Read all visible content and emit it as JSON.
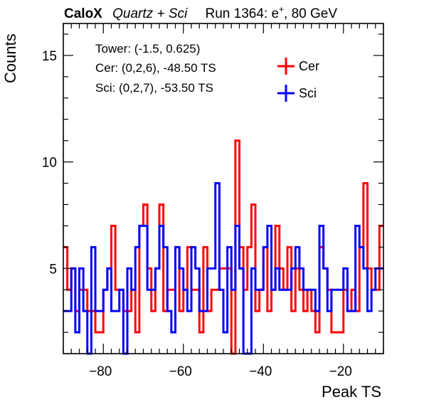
{
  "header": {
    "brand": "CaloX",
    "subtitle": "Quartz + Sci",
    "run_prefix": "Run 1364: e",
    "run_sup": "+",
    "run_suffix": ", 80 GeV"
  },
  "annotations": [
    "Tower: (-1.5, 0.625)",
    "Cer: (0,2,6), -48.50 TS",
    "Sci: (0,2,7), -53.50 TS"
  ],
  "chart_data": {
    "type": "histogram",
    "xlabel": "Peak TS",
    "ylabel": "Counts",
    "xlim": [
      -90,
      -10
    ],
    "ylim": [
      1,
      16.5
    ],
    "x_ticks": [
      -80,
      -60,
      -40,
      -20
    ],
    "y_ticks": [
      5,
      10,
      15
    ],
    "bin_edges_start": -90,
    "bin_width": 1,
    "legend_position": "top-right",
    "series": [
      {
        "name": "Cer",
        "color": "#ff0000",
        "values": [
          6,
          4,
          5,
          3,
          4,
          4,
          3,
          3,
          2,
          2,
          4,
          5,
          7,
          4,
          4,
          3,
          3,
          4,
          2,
          7,
          8,
          5,
          3,
          5,
          8,
          3,
          4,
          4,
          6,
          3,
          4,
          6,
          4,
          4,
          2,
          6,
          3,
          4,
          4,
          5,
          5,
          5,
          1,
          11,
          6,
          4,
          6,
          8,
          3,
          4,
          6,
          3,
          4,
          7,
          5,
          4,
          6,
          3,
          5,
          4,
          3,
          4,
          3,
          2,
          6,
          5,
          4,
          2,
          2,
          2,
          4,
          3,
          4,
          3,
          6,
          9,
          5,
          4,
          4,
          7
        ]
      },
      {
        "name": "Sci",
        "color": "#0000ff",
        "values": [
          3,
          3,
          5,
          2,
          5,
          3,
          1,
          6,
          3,
          3,
          4,
          5,
          3,
          3,
          4,
          1,
          5,
          4,
          6,
          7,
          7,
          4,
          4,
          5,
          7,
          6,
          3,
          2,
          6,
          5,
          4,
          3,
          6,
          5,
          3,
          3,
          5,
          5,
          9,
          4,
          2,
          6,
          4,
          7,
          5,
          1,
          1,
          5,
          4,
          4,
          6,
          7,
          4,
          5,
          4,
          4,
          4,
          5,
          6,
          5,
          4,
          4,
          4,
          3,
          7,
          5,
          3,
          4,
          4,
          4,
          5,
          3,
          3,
          7,
          6,
          5,
          3,
          4,
          5,
          5
        ]
      }
    ]
  }
}
